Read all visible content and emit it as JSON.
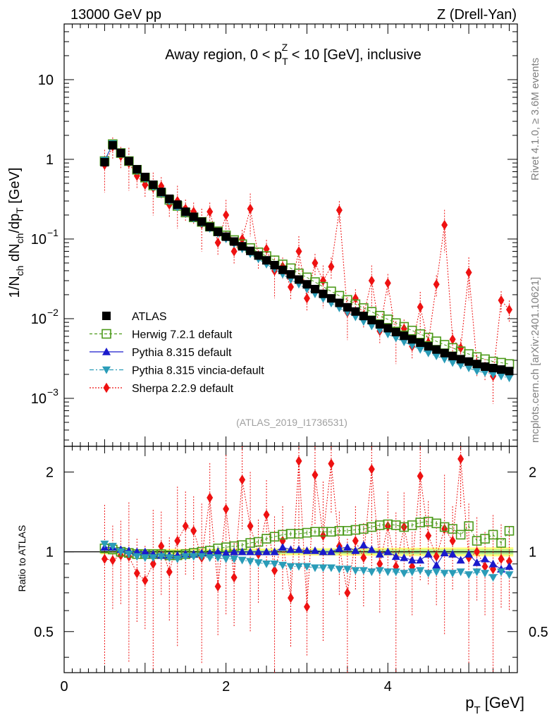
{
  "header": {
    "energy_label": "13000 GeV pp",
    "process_label": "Z (Drell-Yan)"
  },
  "side_labels": {
    "rivet": "Rivet 4.1.0, ≥ 3.6M events",
    "mcplots": "mcplots.cern.ch [arXiv:2401.10621]"
  },
  "chart_data": [
    {
      "type": "scatter",
      "panel": "main",
      "title": "Away region, 0 < p_T^Z < 10 [GeV], inclusive",
      "title_parts": {
        "pre": "Away region, 0 < p",
        "sub": "T",
        "sup": "Z",
        "post": " < 10 [GeV], inclusive"
      },
      "analysis_id": "(ATLAS_2019_I1736531)",
      "ylabel": "1/N_ch dN_ch/dp_T [GeV]",
      "yscale": "log",
      "xlim": [
        0,
        5.6
      ],
      "ylim": [
        0.00025,
        50
      ],
      "x_ticks": [
        0,
        2,
        4
      ],
      "y_ticks": [
        {
          "value": 10,
          "label": "10"
        },
        {
          "value": 1,
          "label": "1"
        },
        {
          "value": 0.1,
          "label": "10",
          "exp": "−1"
        },
        {
          "value": 0.01,
          "label": "10",
          "exp": "−2"
        },
        {
          "value": 0.001,
          "label": "10",
          "exp": "−3"
        }
      ],
      "legend_position": "bottom-left",
      "x": [
        0.5,
        0.6,
        0.7,
        0.8,
        0.9,
        1.0,
        1.1,
        1.2,
        1.3,
        1.4,
        1.5,
        1.6,
        1.7,
        1.8,
        1.9,
        2.0,
        2.1,
        2.2,
        2.3,
        2.4,
        2.5,
        2.6,
        2.7,
        2.8,
        2.9,
        3.0,
        3.1,
        3.2,
        3.3,
        3.4,
        3.5,
        3.6,
        3.7,
        3.8,
        3.9,
        4.0,
        4.1,
        4.2,
        4.3,
        4.4,
        4.5,
        4.6,
        4.7,
        4.8,
        4.9,
        5.0,
        5.1,
        5.2,
        5.3,
        5.4,
        5.5
      ],
      "series": [
        {
          "name": "ATLAS",
          "marker": "square-filled",
          "color": "#000000",
          "values": [
            0.92,
            1.5,
            1.2,
            0.95,
            0.75,
            0.6,
            0.48,
            0.39,
            0.32,
            0.27,
            0.22,
            0.19,
            0.165,
            0.142,
            0.123,
            0.107,
            0.093,
            0.081,
            0.071,
            0.062,
            0.054,
            0.047,
            0.041,
            0.036,
            0.031,
            0.027,
            0.0235,
            0.0205,
            0.018,
            0.0158,
            0.0139,
            0.0123,
            0.0108,
            0.0096,
            0.0085,
            0.0076,
            0.0068,
            0.0061,
            0.0055,
            0.005,
            0.0045,
            0.0041,
            0.0037,
            0.0034,
            0.0031,
            0.0029,
            0.0027,
            0.0025,
            0.0024,
            0.0023,
            0.0022
          ]
        },
        {
          "name": "Herwig 7.2.1 default",
          "marker": "square-open",
          "color": "#4c9a1a",
          "values": [
            0.95,
            1.55,
            1.2,
            0.95,
            0.74,
            0.59,
            0.47,
            0.38,
            0.31,
            0.26,
            0.215,
            0.187,
            0.164,
            0.143,
            0.125,
            0.111,
            0.097,
            0.086,
            0.077,
            0.068,
            0.061,
            0.054,
            0.048,
            0.043,
            0.037,
            0.033,
            0.0288,
            0.0252,
            0.022,
            0.0194,
            0.0172,
            0.0152,
            0.0136,
            0.0122,
            0.0109,
            0.0098,
            0.0088,
            0.0079,
            0.0071,
            0.0064,
            0.0058,
            0.0052,
            0.0047,
            0.0043,
            0.0039,
            0.0036,
            0.0033,
            0.0031,
            0.0029,
            0.0028,
            0.0027
          ]
        },
        {
          "name": "Pythia 8.315 default",
          "marker": "triangle-up",
          "color": "#1a1acc",
          "values": [
            0.96,
            1.56,
            1.22,
            0.96,
            0.75,
            0.6,
            0.47,
            0.38,
            0.31,
            0.26,
            0.215,
            0.185,
            0.162,
            0.14,
            0.122,
            0.106,
            0.093,
            0.081,
            0.071,
            0.062,
            0.054,
            0.047,
            0.041,
            0.036,
            0.031,
            0.027,
            0.0235,
            0.0205,
            0.018,
            0.0158,
            0.0139,
            0.0123,
            0.0108,
            0.0096,
            0.0085,
            0.0076,
            0.0068,
            0.0061,
            0.0055,
            0.005,
            0.0045,
            0.0041,
            0.0037,
            0.0034,
            0.0031,
            0.0029,
            0.0027,
            0.0025,
            0.0024,
            0.0023,
            0.0022
          ]
        },
        {
          "name": "Pythia 8.315 vincia-default",
          "marker": "triangle-down",
          "color": "#2a9cb8",
          "values": [
            0.97,
            1.57,
            1.2,
            0.93,
            0.72,
            0.57,
            0.45,
            0.37,
            0.3,
            0.25,
            0.21,
            0.18,
            0.157,
            0.135,
            0.117,
            0.1,
            0.087,
            0.075,
            0.065,
            0.056,
            0.048,
            0.042,
            0.036,
            0.031,
            0.027,
            0.0235,
            0.0204,
            0.0178,
            0.0156,
            0.0136,
            0.012,
            0.0105,
            0.0092,
            0.0081,
            0.0072,
            0.0064,
            0.0057,
            0.0051,
            0.0046,
            0.0041,
            0.0037,
            0.0034,
            0.0031,
            0.0028,
            0.0026,
            0.0024,
            0.0022,
            0.0021,
            0.002,
            0.0019,
            0.0018
          ]
        },
        {
          "name": "Sherpa 2.2.9 default",
          "marker": "diamond",
          "color": "#ee1111",
          "values": [
            0.85,
            1.45,
            1.1,
            0.9,
            0.62,
            0.48,
            0.44,
            0.46,
            0.27,
            0.3,
            0.24,
            0.22,
            0.155,
            0.22,
            0.09,
            0.2,
            0.07,
            0.1,
            0.24,
            0.06,
            0.075,
            0.04,
            0.045,
            0.025,
            0.07,
            0.018,
            0.05,
            0.03,
            0.045,
            0.23,
            0.012,
            0.018,
            0.011,
            0.03,
            0.007,
            0.028,
            0.006,
            0.0075,
            0.0045,
            0.014,
            0.005,
            0.027,
            0.15,
            0.0055,
            0.0043,
            0.038,
            0.0027,
            0.0024,
            0.0019,
            0.017,
            0.013
          ]
        }
      ]
    },
    {
      "type": "scatter",
      "panel": "ratio",
      "ylabel": "Ratio to ATLAS",
      "xlabel": "p_T [GeV]",
      "xlabel_parts": {
        "pre": "p",
        "sub": "T",
        "post": " [GeV]"
      },
      "xlim": [
        0,
        5.6
      ],
      "ylim": [
        0.35,
        2.5
      ],
      "yscale": "log",
      "y_ticks": [
        {
          "value": 2,
          "label": "2"
        },
        {
          "value": 1,
          "label": "1"
        },
        {
          "value": 0.5,
          "label": "0.5"
        }
      ],
      "x_ticks": [
        {
          "value": 0,
          "label": "0"
        },
        {
          "value": 2,
          "label": "2"
        },
        {
          "value": 4,
          "label": "4"
        }
      ],
      "reference_line": 1,
      "x": [
        0.5,
        0.6,
        0.7,
        0.8,
        0.9,
        1.0,
        1.1,
        1.2,
        1.3,
        1.4,
        1.5,
        1.6,
        1.7,
        1.8,
        1.9,
        2.0,
        2.1,
        2.2,
        2.3,
        2.4,
        2.5,
        2.6,
        2.7,
        2.8,
        2.9,
        3.0,
        3.1,
        3.2,
        3.3,
        3.4,
        3.5,
        3.6,
        3.7,
        3.8,
        3.9,
        4.0,
        4.1,
        4.2,
        4.3,
        4.4,
        4.5,
        4.6,
        4.7,
        4.8,
        4.9,
        5.0,
        5.1,
        5.2,
        5.3,
        5.4,
        5.5
      ],
      "series": [
        {
          "name": "Herwig 7.2.1 default",
          "values": [
            1.03,
            1.02,
            1.0,
            0.99,
            0.98,
            0.98,
            0.98,
            0.98,
            0.97,
            0.97,
            0.98,
            0.99,
            1.0,
            1.01,
            1.03,
            1.04,
            1.05,
            1.06,
            1.08,
            1.09,
            1.12,
            1.14,
            1.16,
            1.17,
            1.17,
            1.18,
            1.19,
            1.19,
            1.19,
            1.2,
            1.2,
            1.21,
            1.22,
            1.24,
            1.26,
            1.27,
            1.26,
            1.24,
            1.26,
            1.29,
            1.3,
            1.28,
            1.24,
            1.22,
            1.16,
            1.25,
            1.1,
            1.12,
            1.16,
            1.08,
            1.2
          ]
        },
        {
          "name": "Pythia 8.315 default",
          "values": [
            1.04,
            1.04,
            1.02,
            1.01,
            1.0,
            1.0,
            0.98,
            0.97,
            0.97,
            0.97,
            0.98,
            0.98,
            0.99,
            0.99,
            1.0,
            0.99,
            1.0,
            1.0,
            1.0,
            1.0,
            1.0,
            1.0,
            1.04,
            1.02,
            1.02,
            1.01,
            1.01,
            1.0,
            1.0,
            1.03,
            1.04,
            1.01,
            1.06,
            1.02,
            0.98,
            1.0,
            0.96,
            0.95,
            0.93,
            0.93,
            0.98,
            0.89,
            0.99,
            0.98,
            0.93,
            0.98,
            0.91,
            0.94,
            0.9,
            0.86,
            0.88
          ]
        },
        {
          "name": "Pythia 8.315 vincia-default",
          "values": [
            1.07,
            1.05,
            1.0,
            0.98,
            0.96,
            0.95,
            0.95,
            0.96,
            0.95,
            0.94,
            0.96,
            0.96,
            0.96,
            0.95,
            0.95,
            0.94,
            0.94,
            0.93,
            0.92,
            0.91,
            0.9,
            0.9,
            0.89,
            0.88,
            0.88,
            0.88,
            0.87,
            0.87,
            0.87,
            0.86,
            0.86,
            0.85,
            0.85,
            0.84,
            0.85,
            0.84,
            0.84,
            0.83,
            0.84,
            0.85,
            0.83,
            0.84,
            0.83,
            0.83,
            0.84,
            0.82,
            0.84,
            0.83,
            0.8,
            0.84,
            0.82
          ]
        },
        {
          "name": "Sherpa 2.2.9 default",
          "values": [
            0.94,
            0.93,
            0.97,
            0.96,
            0.83,
            0.78,
            0.9,
            1.05,
            0.84,
            1.1,
            1.25,
            1.2,
            0.95,
            1.6,
            0.74,
            1.45,
            0.8,
            1.87,
            1.25,
            0.98,
            1.38,
            0.85,
            1.1,
            0.67,
            2.2,
            0.62,
            1.95,
            1.15,
            2.15,
            1.05,
            0.7,
            1.1,
            0.95,
            2.05,
            0.9,
            1.25,
            0.88,
            1.24,
            0.88,
            1.93,
            1.15,
            0.96,
            1.22,
            1.1,
            2.24,
            0.95,
            1.0,
            0.88,
            0.86,
            0.94,
            0.92
          ]
        }
      ]
    }
  ]
}
